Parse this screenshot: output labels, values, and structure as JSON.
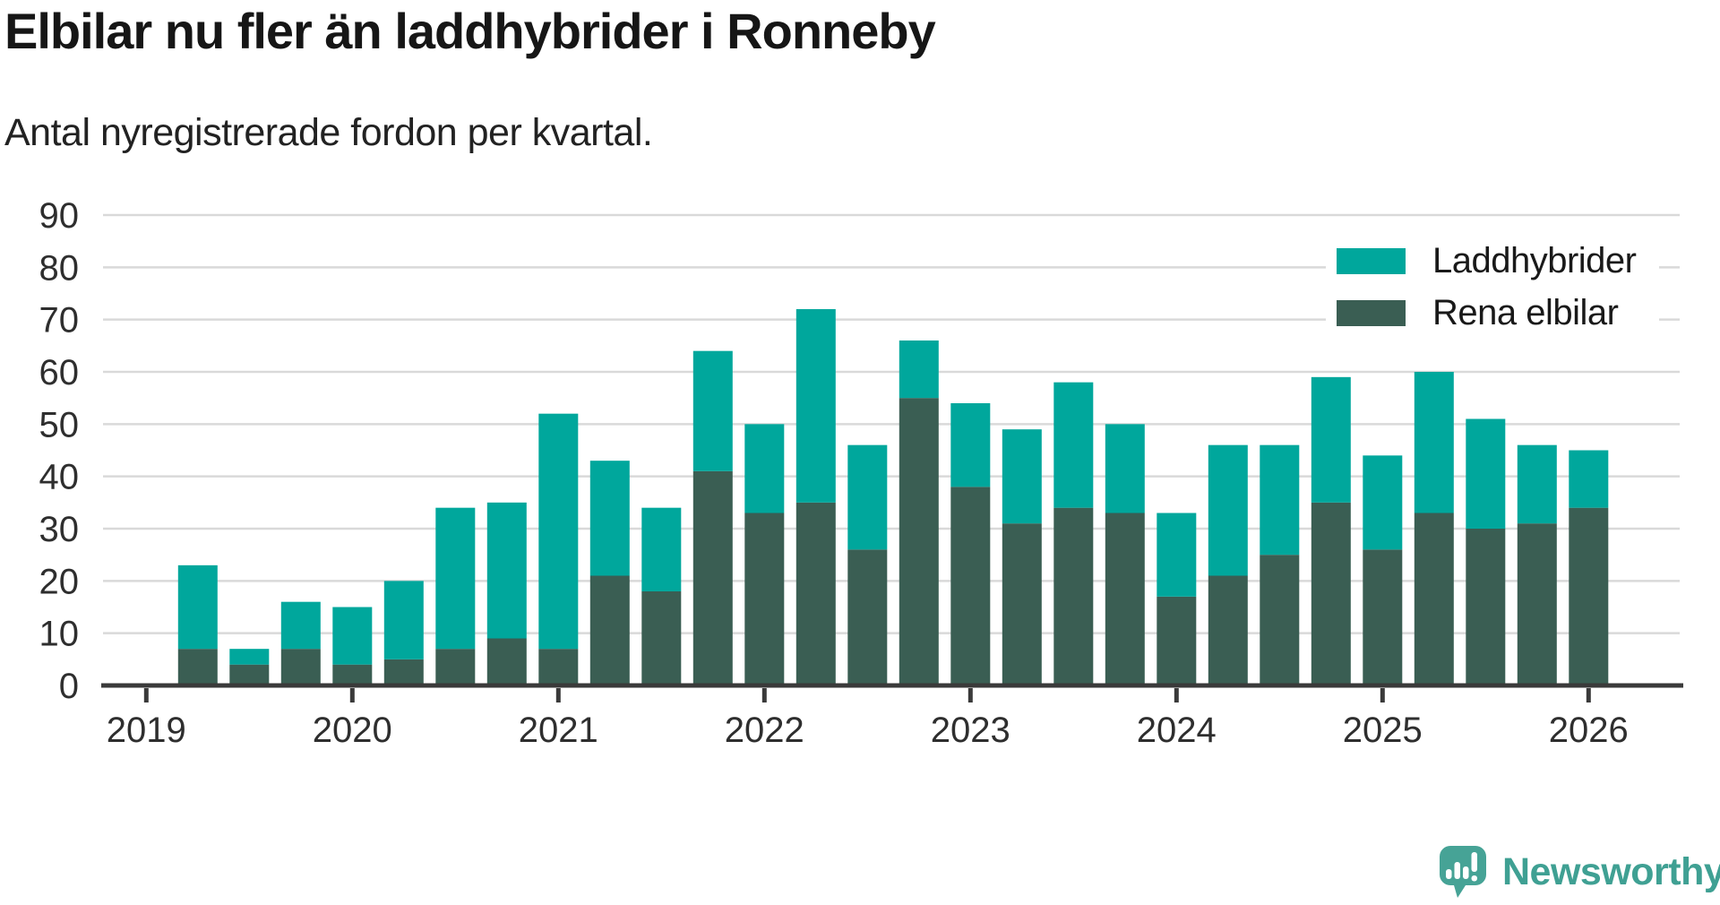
{
  "header": {
    "title": "Elbilar nu fler än laddhybrider i Ronneby",
    "subtitle": "Antal nyregistrerade fordon per kvartal."
  },
  "legend": {
    "items": [
      {
        "label": "Laddhybrider",
        "color": "#00A79C"
      },
      {
        "label": "Rena elbilar",
        "color": "#3A5E53"
      }
    ]
  },
  "branding": {
    "wordmark": "Newsworthy",
    "color": "#3FA093",
    "icon": "newsworthy-speech-bubble-chart-icon",
    "icon_color": "#46A396"
  },
  "chart_data": {
    "type": "bar",
    "stacked": true,
    "title": "Elbilar nu fler än laddhybrider i Ronneby",
    "subtitle": "Antal nyregistrerade fordon per kvartal.",
    "xlabel": "",
    "ylabel": "",
    "categories": [
      "2019 Q2",
      "2019 Q3",
      "2019 Q4",
      "2020 Q1",
      "2020 Q2",
      "2020 Q3",
      "2020 Q4",
      "2021 Q1",
      "2021 Q2",
      "2021 Q3",
      "2021 Q4",
      "2022 Q1",
      "2022 Q2",
      "2022 Q3",
      "2022 Q4",
      "2023 Q1",
      "2023 Q2",
      "2023 Q3",
      "2023 Q4",
      "2024 Q1",
      "2024 Q2",
      "2024 Q3",
      "2024 Q4",
      "2025 Q1",
      "2025 Q2",
      "2025 Q3",
      "2025 Q4",
      "2026 Q1"
    ],
    "series": [
      {
        "name": "Laddhybrider",
        "color": "#00A79C",
        "values": [
          16,
          3,
          9,
          11,
          15,
          27,
          26,
          45,
          22,
          16,
          23,
          17,
          37,
          20,
          11,
          16,
          18,
          24,
          17,
          16,
          25,
          21,
          24,
          18,
          27,
          21,
          15,
          11
        ]
      },
      {
        "name": "Rena elbilar",
        "color": "#3A5E53",
        "values": [
          7,
          4,
          7,
          4,
          5,
          7,
          9,
          7,
          21,
          18,
          41,
          33,
          35,
          26,
          55,
          38,
          31,
          34,
          33,
          17,
          21,
          25,
          35,
          26,
          33,
          30,
          31,
          34
        ]
      }
    ],
    "stack_order_bottom_to_top": [
      "Rena elbilar",
      "Laddhybrider"
    ],
    "totals": [
      23,
      7,
      16,
      15,
      20,
      34,
      35,
      52,
      43,
      34,
      64,
      50,
      72,
      46,
      66,
      54,
      49,
      58,
      50,
      33,
      46,
      46,
      59,
      44,
      60,
      51,
      46,
      45
    ],
    "ylim": [
      0,
      90
    ],
    "y_ticks": [
      0,
      10,
      20,
      30,
      40,
      50,
      60,
      70,
      80,
      90
    ],
    "x_tick_years": [
      "2019",
      "2020",
      "2021",
      "2022",
      "2023",
      "2024",
      "2025",
      "2026"
    ],
    "grid": "horizontal",
    "legend_position": "top-right",
    "colors": {
      "axis": "#3A3A3A",
      "grid": "#D9D9D9",
      "tick_label": "#2E2E2E"
    }
  }
}
